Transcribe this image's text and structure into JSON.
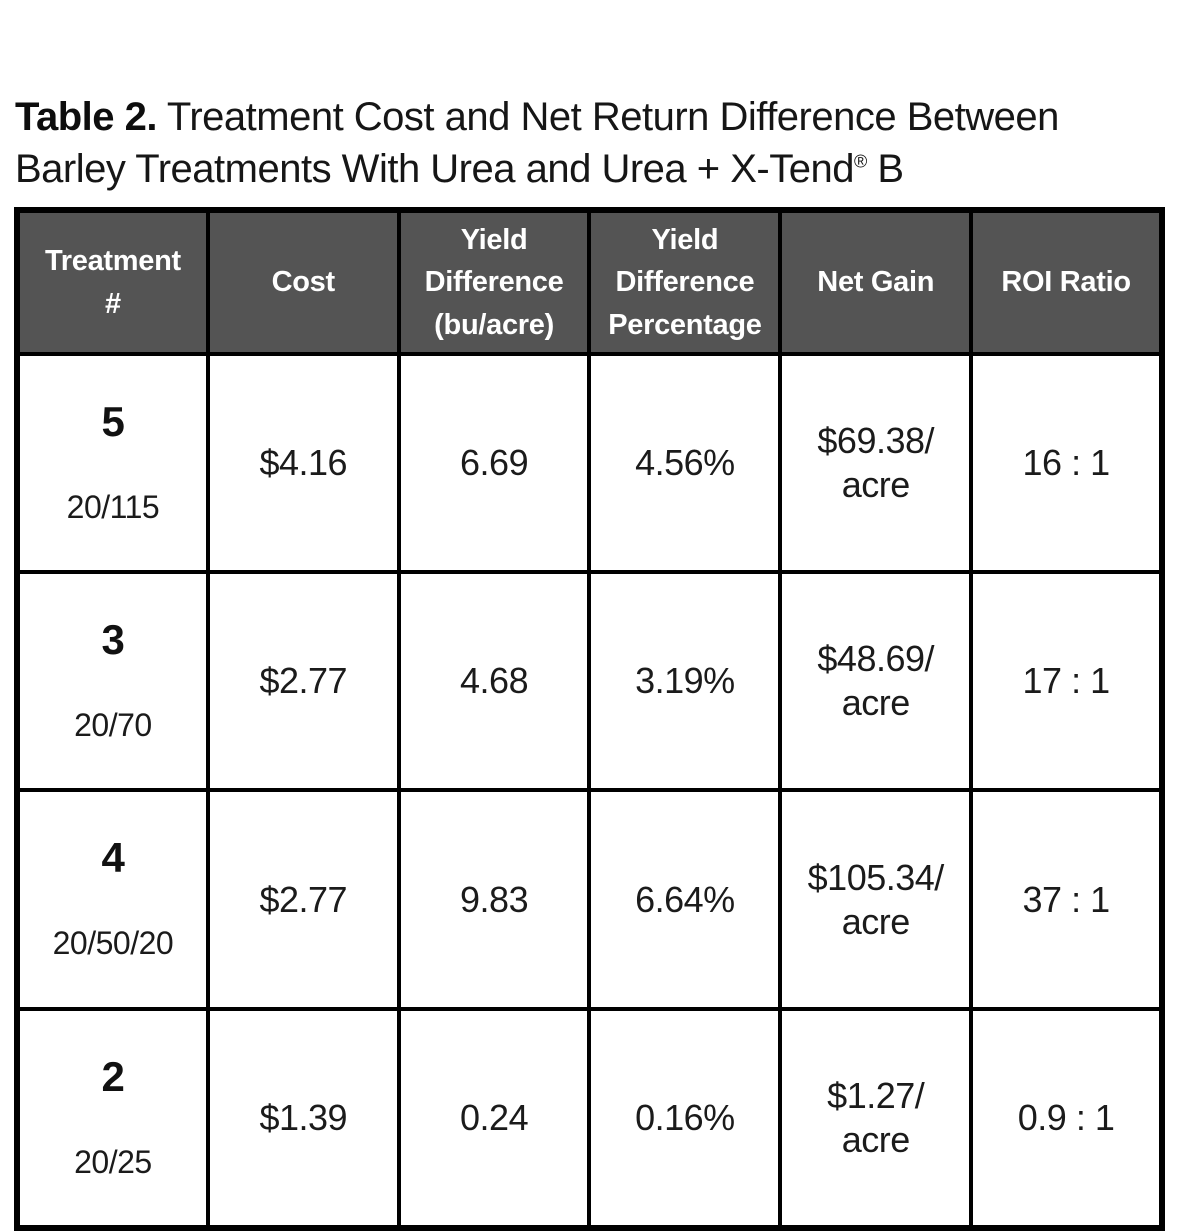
{
  "title": {
    "label": "Table 2.",
    "line1": " Treatment Cost and Net Return Difference Between",
    "line2": "Barley Treatments With Urea and Urea + X-Tend",
    "trademark": "®",
    "line2_end": " B"
  },
  "colors": {
    "header_bg": "#545454",
    "header_text": "#ffffff",
    "border": "#000000",
    "body_text": "#1b1b1b"
  },
  "table": {
    "headers": [
      "Treatment\n#",
      "Cost",
      "Yield\nDifference\n(bu/acre)",
      "Yield\nDifference\nPercentage",
      "Net Gain",
      "ROI Ratio"
    ],
    "rows": [
      {
        "treatment_num": "5",
        "treatment_sub": "20/115",
        "cost": "$4.16",
        "yield_diff": "6.69",
        "yield_diff_pct": "4.56%",
        "net_gain": "$69.38/\nacre",
        "roi": "16 : 1"
      },
      {
        "treatment_num": "3",
        "treatment_sub": "20/70",
        "cost": "$2.77",
        "yield_diff": "4.68",
        "yield_diff_pct": "3.19%",
        "net_gain": "$48.69/\nacre",
        "roi": "17 : 1"
      },
      {
        "treatment_num": "4",
        "treatment_sub": "20/50/20",
        "cost": "$2.77",
        "yield_diff": "9.83",
        "yield_diff_pct": "6.64%",
        "net_gain": "$105.34/\nacre",
        "roi": "37 : 1"
      },
      {
        "treatment_num": "2",
        "treatment_sub": "20/25",
        "cost": "$1.39",
        "yield_diff": "0.24",
        "yield_diff_pct": "0.16%",
        "net_gain": "$1.27/\nacre",
        "roi": "0.9 : 1"
      }
    ]
  }
}
